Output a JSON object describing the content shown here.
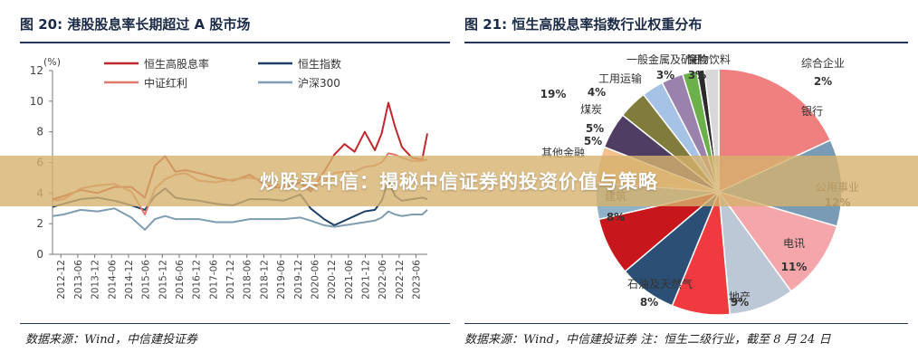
{
  "banner": {
    "text": "炒股买中信：揭秘中信证券的投资价值与策略"
  },
  "left_panel": {
    "title": "图 20:  港股股息率长期超过 A 股市场",
    "source": "数据来源：Wind，中信建投证券"
  },
  "right_panel": {
    "title": "图 21:  恒生高股息率指数行业权重分布",
    "source": "数据来源：Wind，中信建投证券  注：恒生二级行业，截至 8 月 24 日"
  },
  "chart_data": [
    {
      "type": "line",
      "unit_label": "(%)",
      "ylim": [
        0,
        12
      ],
      "yticks": [
        0,
        2,
        4,
        6,
        8,
        10,
        12
      ],
      "xlim": [
        2012.67,
        2023.75
      ],
      "xticks": [
        "2012-12",
        "2013-06",
        "2013-12",
        "2014-06",
        "2014-12",
        "2015-06",
        "2015-12",
        "2016-06",
        "2016-12",
        "2017-06",
        "2017-12",
        "2018-06",
        "2018-12",
        "2019-06",
        "2019-12",
        "2020-06",
        "2020-12",
        "2021-06",
        "2021-12",
        "2022-06",
        "2022-12",
        "2023-06"
      ],
      "legend_position": "top",
      "series": [
        {
          "name": "恒生高股息率",
          "color": "#c0282d",
          "x": [
            2012.67,
            2013.0,
            2013.5,
            2014.0,
            2014.5,
            2015.0,
            2015.4,
            2015.7,
            2016.0,
            2016.3,
            2016.6,
            2017.0,
            2017.5,
            2018.0,
            2018.5,
            2019.0,
            2019.5,
            2020.0,
            2020.3,
            2020.7,
            2021.0,
            2021.3,
            2021.6,
            2021.9,
            2022.2,
            2022.4,
            2022.6,
            2022.8,
            2023.0,
            2023.3,
            2023.6,
            2023.75
          ],
          "y": [
            3.6,
            3.8,
            4.2,
            4.0,
            4.4,
            4.4,
            3.7,
            5.8,
            6.4,
            5.4,
            5.5,
            5.3,
            5.0,
            4.8,
            5.2,
            4.5,
            4.3,
            4.7,
            4.1,
            5.4,
            6.5,
            7.2,
            6.7,
            8.0,
            6.8,
            7.9,
            9.9,
            8.3,
            7.0,
            6.3,
            6.2,
            7.9
          ]
        },
        {
          "name": "恒生指数",
          "color": "#1f3f66",
          "x": [
            2012.67,
            2013.0,
            2013.5,
            2014.0,
            2014.5,
            2015.0,
            2015.4,
            2015.7,
            2016.0,
            2016.3,
            2016.6,
            2017.0,
            2017.5,
            2018.0,
            2018.5,
            2019.0,
            2019.5,
            2020.0,
            2020.3,
            2020.7,
            2021.0,
            2021.3,
            2021.6,
            2021.9,
            2022.2,
            2022.4,
            2022.6,
            2022.8,
            2023.0,
            2023.3,
            2023.6,
            2023.75
          ],
          "y": [
            3.1,
            3.3,
            3.6,
            3.7,
            3.5,
            3.2,
            2.9,
            3.8,
            4.3,
            3.7,
            3.6,
            3.5,
            3.3,
            3.2,
            3.6,
            3.6,
            3.5,
            3.9,
            3.0,
            2.3,
            1.9,
            2.2,
            2.5,
            2.8,
            2.9,
            3.5,
            4.8,
            3.8,
            3.5,
            3.6,
            3.7,
            3.6
          ]
        },
        {
          "name": "中证红利",
          "color": "#e07a6b",
          "x": [
            2012.67,
            2013.0,
            2013.5,
            2014.0,
            2014.5,
            2015.0,
            2015.4,
            2015.7,
            2016.0,
            2016.3,
            2016.6,
            2017.0,
            2017.5,
            2018.0,
            2018.5,
            2019.0,
            2019.5,
            2020.0,
            2020.3,
            2020.7,
            2021.0,
            2021.3,
            2021.6,
            2021.9,
            2022.2,
            2022.4,
            2022.6,
            2022.8,
            2023.0,
            2023.3,
            2023.6,
            2023.75
          ],
          "y": [
            3.5,
            3.6,
            4.3,
            4.5,
            4.6,
            4.1,
            2.6,
            4.3,
            4.9,
            5.2,
            5.3,
            4.8,
            4.7,
            4.9,
            5.0,
            4.8,
            4.4,
            4.9,
            4.3,
            4.7,
            5.3,
            5.4,
            5.4,
            5.7,
            5.8,
            6.0,
            6.6,
            6.5,
            6.3,
            6.1,
            6.1,
            6.2
          ]
        },
        {
          "name": "沪深300",
          "color": "#7e9db1",
          "x": [
            2012.67,
            2013.0,
            2013.5,
            2014.0,
            2014.5,
            2015.0,
            2015.4,
            2015.7,
            2016.0,
            2016.3,
            2016.6,
            2017.0,
            2017.5,
            2018.0,
            2018.5,
            2019.0,
            2019.5,
            2020.0,
            2020.3,
            2020.7,
            2021.0,
            2021.3,
            2021.6,
            2021.9,
            2022.2,
            2022.4,
            2022.6,
            2022.8,
            2023.0,
            2023.3,
            2023.6,
            2023.75
          ],
          "y": [
            2.5,
            2.6,
            2.9,
            2.8,
            3.0,
            2.4,
            1.6,
            2.3,
            2.5,
            2.3,
            2.3,
            2.3,
            2.1,
            2.1,
            2.3,
            2.3,
            2.3,
            2.4,
            2.2,
            1.9,
            1.8,
            1.9,
            2.0,
            2.1,
            2.2,
            2.4,
            2.8,
            2.6,
            2.5,
            2.6,
            2.6,
            2.9
          ]
        }
      ]
    },
    {
      "type": "pie",
      "slices": [
        {
          "label": "银行",
          "value": 19,
          "pct": "19%",
          "color": "#f08080"
        },
        {
          "label": "公用事业",
          "value": 12,
          "pct": "12%",
          "color": "#7a9bb6"
        },
        {
          "label": "电讯",
          "value": 11,
          "pct": "11%",
          "color": "#f4a6aa"
        },
        {
          "label": "地产",
          "value": 9,
          "pct": "9%",
          "color": "#bcc8d6"
        },
        {
          "label": "石油及天然气",
          "value": 8,
          "pct": "8%",
          "color": "#f03a3f"
        },
        {
          "label": "",
          "value": 8,
          "pct": "",
          "color": "#2c5075"
        },
        {
          "label": "建筑",
          "value": 8,
          "pct": "8%",
          "color": "#c8161d"
        },
        {
          "label": "",
          "value": 5,
          "pct": "",
          "color": "#8fb2c9"
        },
        {
          "label": "其他金融",
          "value": 5,
          "pct": "5%",
          "color": "#f5c08f"
        },
        {
          "label": "煤炭",
          "value": 5,
          "pct": "5%",
          "color": "#4f3d64"
        },
        {
          "label": "工用运输",
          "value": 4,
          "pct": "4%",
          "color": "#807c3b"
        },
        {
          "label": "一般金属及矿石",
          "value": 3,
          "pct": "3%",
          "color": "#a6c3e6"
        },
        {
          "label": "保险",
          "value": 3,
          "pct": "3%",
          "color": "#9b82ad"
        },
        {
          "label": "食物饮料",
          "value": 2,
          "pct": "",
          "color": "#6bb04a"
        },
        {
          "label": "",
          "value": 1,
          "pct": "",
          "color": "#2b2b2b"
        },
        {
          "label": "综合企业",
          "value": 2,
          "pct": "2%",
          "color": "#d8d8d8"
        }
      ]
    }
  ]
}
